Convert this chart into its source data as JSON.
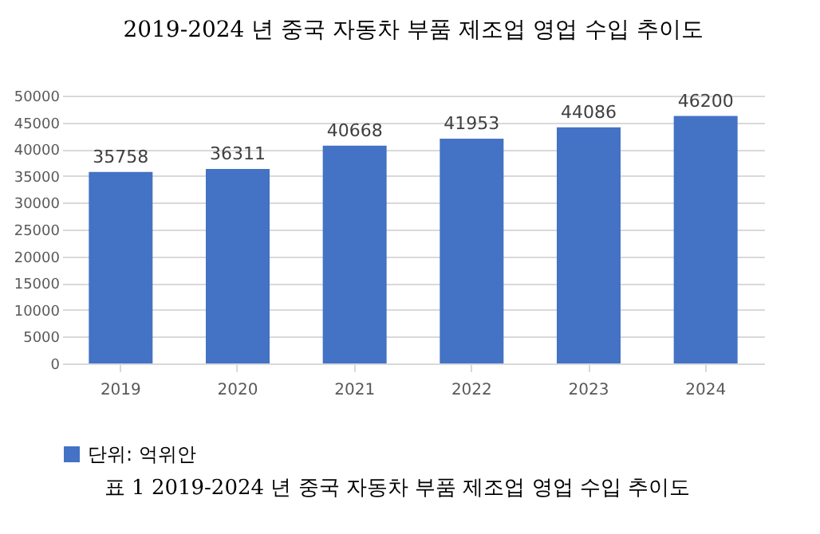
{
  "chart_data": {
    "type": "bar",
    "title": "2019-2024 년 중국 자동차 부품 제조업 영업 수입 추이도",
    "categories": [
      "2019",
      "2020",
      "2021",
      "2022",
      "2023",
      "2024"
    ],
    "series": [
      {
        "name": "단위: 억위안",
        "color": "#4472c4",
        "values": [
          35758,
          36311,
          40668,
          41953,
          44086,
          46200
        ]
      }
    ],
    "ylim": [
      0,
      50000
    ],
    "yticks": [
      0,
      5000,
      10000,
      15000,
      20000,
      25000,
      30000,
      35000,
      40000,
      45000,
      50000
    ],
    "grid": "y",
    "legend": "bottom",
    "data_labels": true,
    "annotations": [
      "표 1 2019-2024 년 중국 자동차 부품 제조업 영업 수입 추이도"
    ]
  }
}
